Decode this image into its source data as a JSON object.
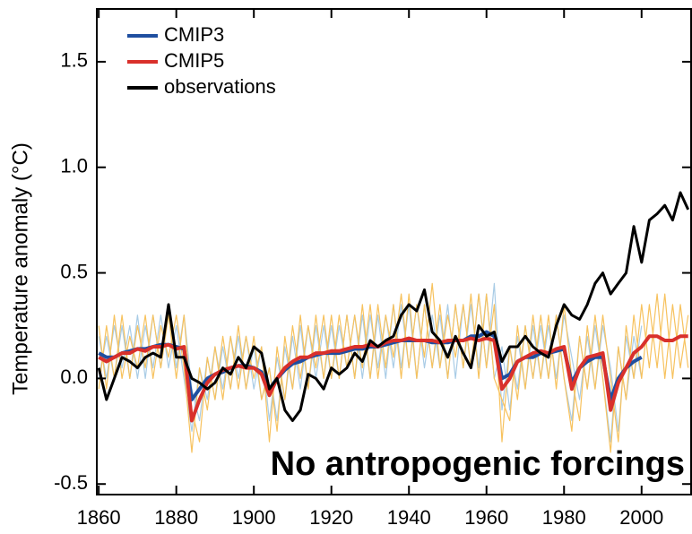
{
  "chart_data": {
    "type": "line",
    "ylabel": "Temperature anomaly (°C)",
    "annotation": "No antropogenic forcings",
    "x": [
      1860,
      1862,
      1864,
      1866,
      1868,
      1870,
      1872,
      1874,
      1876,
      1878,
      1880,
      1882,
      1884,
      1886,
      1888,
      1890,
      1892,
      1894,
      1896,
      1898,
      1900,
      1902,
      1904,
      1906,
      1908,
      1910,
      1912,
      1914,
      1916,
      1918,
      1920,
      1922,
      1924,
      1926,
      1928,
      1930,
      1932,
      1934,
      1936,
      1938,
      1940,
      1942,
      1944,
      1946,
      1948,
      1950,
      1952,
      1954,
      1956,
      1958,
      1960,
      1962,
      1964,
      1966,
      1968,
      1970,
      1972,
      1974,
      1976,
      1978,
      1980,
      1982,
      1984,
      1986,
      1988,
      1990,
      1992,
      1994,
      1996,
      1998,
      2000,
      2002,
      2004,
      2006,
      2008,
      2010,
      2012
    ],
    "xlim": [
      1859.5,
      2013
    ],
    "xticks": [
      1860,
      1880,
      1900,
      1920,
      1940,
      1960,
      1980,
      2000
    ],
    "ylim": [
      -0.55,
      1.75
    ],
    "yticks": [
      {
        "value": -0.5,
        "label": "-0.5"
      },
      {
        "value": 0,
        "label": "0.0"
      },
      0.5,
      {
        "value": 1,
        "label": "1.0"
      },
      1.5
    ],
    "ensemble": [
      {
        "color": "#a9cce6",
        "values": [
          0.2,
          0.0,
          0.25,
          0.05,
          0.25,
          0.0,
          0.25,
          0.05,
          0.3,
          0.05,
          0.25,
          0.0,
          -0.25,
          0.05,
          -0.1,
          0.15,
          -0.05,
          0.2,
          0.0,
          0.2,
          -0.05,
          0.15,
          -0.2,
          0.1,
          -0.1,
          0.2,
          -0.05,
          0.25,
          0.0,
          0.25,
          0.0,
          0.25,
          0.05,
          0.3,
          0.0,
          0.3,
          0.05,
          0.3,
          0.05,
          0.35,
          0.05,
          0.35,
          0.05,
          0.3,
          0.05,
          0.35,
          0.0,
          0.35,
          0.05,
          0.4,
          0.05,
          0.45,
          -0.15,
          0.15,
          -0.05,
          0.25,
          0.0,
          0.25,
          0.0,
          0.3,
          0.0,
          -0.2,
          0.2,
          -0.05,
          0.25,
          0.0,
          -0.3,
          0.15,
          -0.1,
          0.2,
          0.0,
          null,
          null,
          null,
          null,
          null,
          null
        ]
      },
      {
        "color": "#a9cce6",
        "values": [
          0.0,
          0.2,
          0.0,
          0.25,
          0.0,
          0.3,
          0.0,
          0.3,
          0.05,
          0.3,
          0.05,
          0.3,
          -0.05,
          -0.2,
          0.1,
          -0.1,
          0.15,
          -0.05,
          0.2,
          -0.05,
          0.15,
          -0.1,
          0.05,
          -0.2,
          0.15,
          -0.05,
          0.25,
          -0.05,
          0.25,
          0.0,
          0.25,
          0.0,
          0.3,
          0.0,
          0.3,
          0.0,
          0.3,
          0.0,
          0.35,
          0.05,
          0.35,
          0.0,
          0.35,
          0.05,
          0.3,
          0.0,
          0.35,
          0.05,
          0.35,
          0.05,
          0.4,
          0.0,
          0.15,
          -0.15,
          0.2,
          -0.05,
          0.25,
          0.0,
          0.25,
          0.0,
          0.3,
          0.1,
          -0.1,
          0.2,
          -0.05,
          0.25,
          0.05,
          -0.25,
          0.2,
          0.0,
          0.25,
          null,
          null,
          null,
          null,
          null,
          null
        ]
      },
      {
        "color": "#f7c25e",
        "values": [
          0.25,
          -0.05,
          0.3,
          0.0,
          0.2,
          0.05,
          0.3,
          0.0,
          0.25,
          0.1,
          0.3,
          0.05,
          -0.35,
          0.05,
          -0.15,
          0.15,
          -0.1,
          0.2,
          -0.05,
          0.2,
          0.0,
          0.15,
          -0.3,
          0.15,
          -0.1,
          0.25,
          0.0,
          0.25,
          0.05,
          0.3,
          0.0,
          0.3,
          0.05,
          0.3,
          0.05,
          0.35,
          0.0,
          0.3,
          0.1,
          0.4,
          0.05,
          0.35,
          0.1,
          0.45,
          0.05,
          0.3,
          0.1,
          0.35,
          0.05,
          0.4,
          0.05,
          0.35,
          -0.3,
          0.15,
          -0.1,
          0.25,
          0.0,
          0.3,
          0.0,
          0.3,
          0.0,
          -0.25,
          0.2,
          -0.05,
          0.3,
          0.0,
          -0.35,
          0.15,
          -0.1,
          0.3,
          0.0,
          0.35,
          0.05,
          0.4,
          0.0,
          0.35,
          0.05
        ]
      },
      {
        "color": "#f7c25e",
        "values": [
          -0.05,
          0.25,
          0.0,
          0.3,
          0.0,
          0.25,
          0.05,
          0.3,
          0.05,
          0.3,
          0.0,
          0.3,
          -0.15,
          -0.3,
          0.1,
          -0.1,
          0.2,
          -0.05,
          0.25,
          -0.05,
          0.2,
          -0.1,
          0.05,
          -0.25,
          0.2,
          -0.05,
          0.3,
          -0.05,
          0.3,
          0.0,
          0.3,
          0.0,
          0.3,
          0.0,
          0.35,
          0.0,
          0.35,
          0.05,
          0.35,
          0.0,
          0.4,
          0.0,
          0.35,
          0.05,
          0.35,
          0.0,
          0.35,
          0.05,
          0.4,
          0.0,
          0.4,
          0.0,
          -0.1,
          -0.2,
          0.25,
          -0.05,
          0.3,
          0.0,
          0.3,
          -0.05,
          0.35,
          0.0,
          -0.2,
          0.25,
          -0.05,
          0.3,
          0.0,
          -0.3,
          0.25,
          0.0,
          0.35,
          0.05,
          0.4,
          0.0,
          0.35,
          0.05,
          0.3
        ]
      }
    ],
    "series": [
      {
        "name": "CMIP3",
        "color": "#1f4fa0",
        "values": [
          0.12,
          0.1,
          0.1,
          0.12,
          0.13,
          0.14,
          0.14,
          0.15,
          0.16,
          0.16,
          0.15,
          0.14,
          -0.1,
          -0.05,
          0.0,
          0.02,
          0.03,
          0.05,
          0.06,
          0.06,
          0.05,
          0.03,
          -0.05,
          0.0,
          0.04,
          0.07,
          0.08,
          0.1,
          0.11,
          0.12,
          0.12,
          0.12,
          0.13,
          0.14,
          0.14,
          0.15,
          0.15,
          0.16,
          0.17,
          0.18,
          0.18,
          0.18,
          0.18,
          0.17,
          0.17,
          0.17,
          0.18,
          0.18,
          0.2,
          0.2,
          0.22,
          0.2,
          0.0,
          0.02,
          0.08,
          0.1,
          0.1,
          0.12,
          0.12,
          0.13,
          0.14,
          -0.02,
          0.05,
          0.08,
          0.1,
          0.1,
          -0.1,
          0.0,
          0.05,
          0.08,
          0.1,
          null,
          null,
          null,
          null,
          null,
          null
        ]
      },
      {
        "name": "CMIP5",
        "color": "#d9302b",
        "values": [
          0.1,
          0.08,
          0.1,
          0.12,
          0.12,
          0.14,
          0.13,
          0.15,
          0.15,
          0.16,
          0.14,
          0.15,
          -0.2,
          -0.1,
          -0.02,
          0.02,
          0.04,
          0.05,
          0.06,
          0.05,
          0.05,
          0.02,
          -0.08,
          0.0,
          0.05,
          0.08,
          0.1,
          0.1,
          0.12,
          0.12,
          0.13,
          0.13,
          0.14,
          0.15,
          0.15,
          0.16,
          0.15,
          0.17,
          0.18,
          0.18,
          0.19,
          0.18,
          0.18,
          0.18,
          0.17,
          0.18,
          0.18,
          0.18,
          0.19,
          0.18,
          0.19,
          0.18,
          -0.05,
          0.0,
          0.08,
          0.1,
          0.12,
          0.13,
          0.12,
          0.14,
          0.15,
          -0.05,
          0.05,
          0.1,
          0.11,
          0.12,
          -0.15,
          -0.02,
          0.05,
          0.12,
          0.15,
          0.2,
          0.2,
          0.18,
          0.18,
          0.2,
          0.2
        ]
      },
      {
        "name": "observations",
        "color": "#000000",
        "values": [
          0.05,
          -0.1,
          0.0,
          0.1,
          0.08,
          0.05,
          0.1,
          0.12,
          0.1,
          0.35,
          0.1,
          0.1,
          0.0,
          -0.02,
          -0.05,
          -0.02,
          0.05,
          0.02,
          0.1,
          0.05,
          0.15,
          0.12,
          -0.05,
          0.0,
          -0.15,
          -0.2,
          -0.15,
          0.02,
          0.0,
          -0.05,
          0.05,
          0.02,
          0.05,
          0.12,
          0.08,
          0.18,
          0.15,
          0.18,
          0.2,
          0.3,
          0.35,
          0.32,
          0.42,
          0.22,
          0.18,
          0.1,
          0.2,
          0.12,
          0.05,
          0.25,
          0.2,
          0.22,
          0.08,
          0.15,
          0.15,
          0.2,
          0.15,
          0.12,
          0.1,
          0.25,
          0.35,
          0.3,
          0.28,
          0.35,
          0.45,
          0.5,
          0.4,
          0.45,
          0.5,
          0.72,
          0.55,
          0.75,
          0.78,
          0.82,
          0.75,
          0.88,
          0.8
        ]
      }
    ]
  }
}
